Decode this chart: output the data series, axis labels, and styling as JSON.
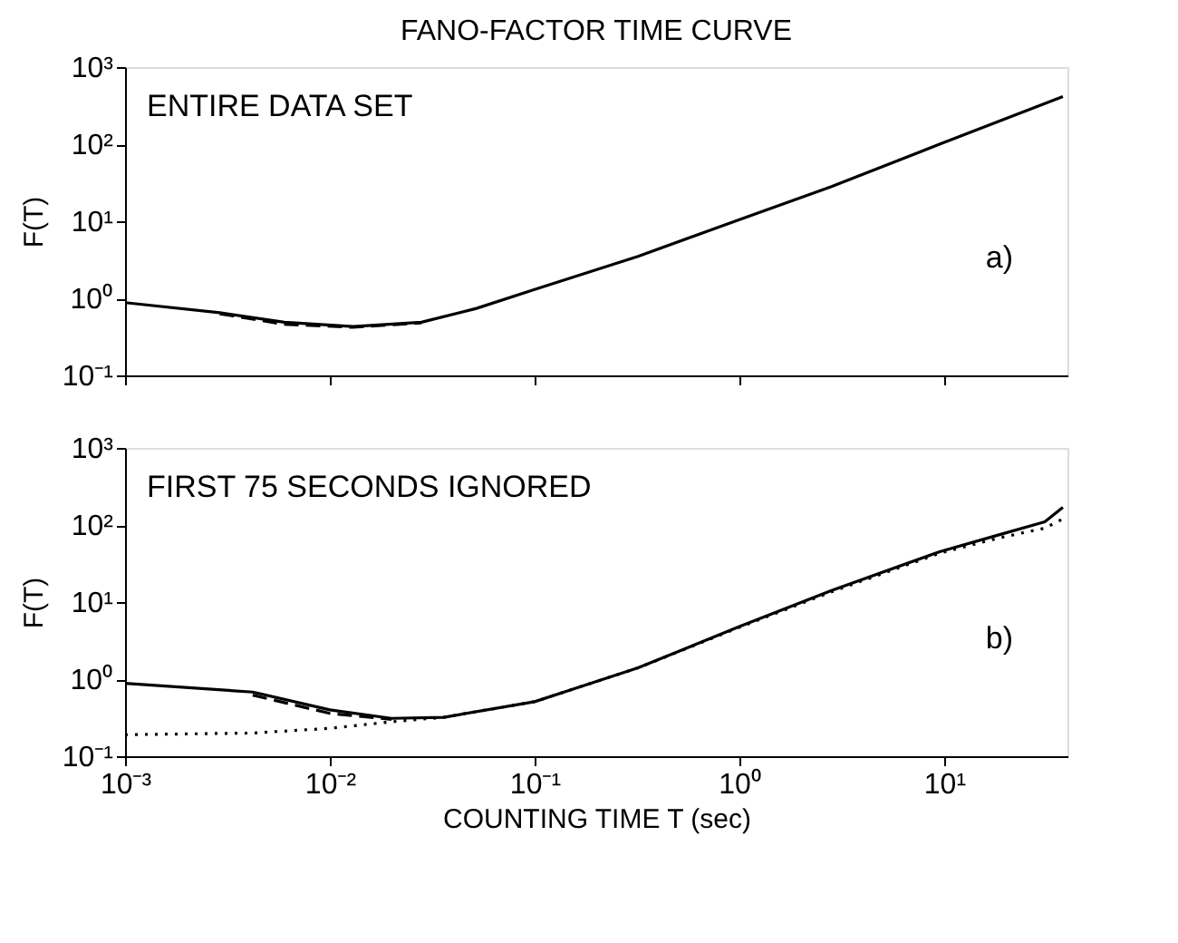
{
  "chart_data": [
    {
      "type": "line",
      "title": "FANO-FACTOR TIME CURVE",
      "ylabel": "F(T)",
      "log": "xy",
      "grid": false,
      "legend": false,
      "marker": "none",
      "tick_labels": "y",
      "annotations": [
        "ENTIRE DATA SET",
        "a)"
      ],
      "x": [
        0.001,
        0.0029,
        0.006,
        0.013,
        0.028,
        0.052,
        0.1,
        0.32,
        1,
        2.8,
        9.5,
        38
      ],
      "xlim": [
        0.001,
        40
      ],
      "xticks": [
        0.001,
        0.01,
        0.1,
        1,
        10
      ],
      "ylim": [
        0.1,
        1000
      ],
      "yticks": [
        {
          "value": 0.1,
          "label": "10⁻¹"
        },
        {
          "value": 1,
          "label": "10⁰"
        },
        {
          "value": 10,
          "label": "10¹"
        },
        {
          "value": 100,
          "label": "10²"
        },
        {
          "value": 1000,
          "label": "10³"
        }
      ],
      "series": [
        {
          "color": "#000000",
          "line_style": "solid",
          "values": [
            0.88,
            0.65,
            0.49,
            0.43,
            0.49,
            0.74,
            1.3,
            3.5,
            10.5,
            28,
            100,
            415
          ]
        },
        {
          "color": "#000000",
          "line_style": "dashed",
          "values": [
            null,
            0.63,
            0.46,
            0.42,
            0.48,
            null,
            null,
            null,
            null,
            null,
            null,
            null
          ]
        }
      ]
    },
    {
      "type": "line",
      "xlabel": "COUNTING TIME T (sec)",
      "ylabel": "F(T)",
      "log": "xy",
      "grid": false,
      "legend": false,
      "marker": "none",
      "annotations": [
        "FIRST 75 SECONDS IGNORED",
        "b)"
      ],
      "x": [
        0.001,
        0.0042,
        0.01,
        0.02,
        0.036,
        0.1,
        0.32,
        1,
        2.8,
        9.5,
        19,
        31,
        38
      ],
      "xlim": [
        0.001,
        40
      ],
      "xticks": [
        {
          "value": 0.001,
          "label": "10⁻³"
        },
        {
          "value": 0.01,
          "label": "10⁻²"
        },
        {
          "value": 0.1,
          "label": "10⁻¹"
        },
        {
          "value": 1,
          "label": "10⁰"
        },
        {
          "value": 10,
          "label": "10¹"
        }
      ],
      "ylim": [
        0.1,
        1000
      ],
      "yticks": [
        {
          "value": 0.1,
          "label": "10⁻¹"
        },
        {
          "value": 1,
          "label": "10⁰"
        },
        {
          "value": 10,
          "label": "10¹"
        },
        {
          "value": 100,
          "label": "10²"
        },
        {
          "value": 1000,
          "label": "10³"
        }
      ],
      "series": [
        {
          "color": "#000000",
          "line_style": "solid",
          "values": [
            0.88,
            0.68,
            0.4,
            0.31,
            0.32,
            0.51,
            1.4,
            4.8,
            14,
            45,
            76,
            110,
            170
          ]
        },
        {
          "color": "#000000",
          "line_style": "dashed",
          "values": [
            null,
            0.62,
            0.36,
            0.3,
            null,
            null,
            null,
            null,
            null,
            null,
            null,
            null,
            null
          ]
        },
        {
          "color": "#000000",
          "line_style": "dotted",
          "values": [
            0.19,
            0.2,
            0.23,
            0.28,
            0.32,
            0.51,
            1.4,
            4.7,
            13.5,
            43,
            69,
            91,
            120
          ]
        }
      ]
    }
  ]
}
